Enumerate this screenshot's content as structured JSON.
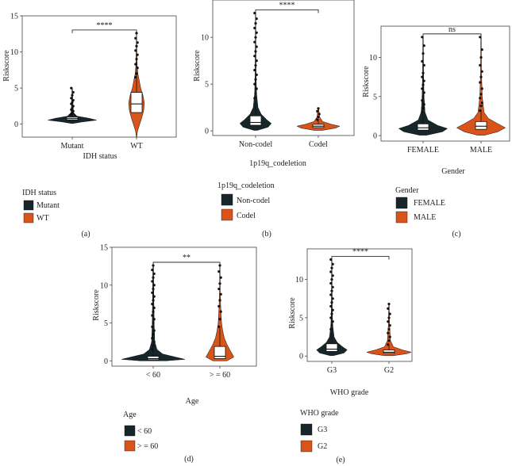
{
  "colors": {
    "dark": "#17262b",
    "orange": "#d9541a",
    "box_fill": "#ffffff",
    "frame": "#444444"
  },
  "chart_data": [
    {
      "panel": "(a)",
      "type": "violin",
      "ylabel": "Riskscore",
      "xlabel": "IDH status",
      "categories": [
        "Mutant",
        "WT"
      ],
      "ylim": [
        -1.8,
        15
      ],
      "yticks": [
        0,
        5,
        10,
        15
      ],
      "significance": "****",
      "legend": {
        "title": "IDH status",
        "entries": [
          "Mutant",
          "WT"
        ]
      },
      "series": [
        {
          "name": "Mutant",
          "color": "#17262b",
          "median": 0.8,
          "q1": 0.6,
          "q3": 1.0,
          "max": 5.0,
          "min": 0.1,
          "width": 0.85,
          "profile": [
            [
              0.1,
              0.05
            ],
            [
              0.3,
              0.4
            ],
            [
              0.55,
              1
            ],
            [
              0.8,
              0.7
            ],
            [
              1.1,
              0.2
            ],
            [
              1.6,
              0.05
            ],
            [
              2.5,
              0.03
            ],
            [
              3.5,
              0.02
            ],
            [
              5.0,
              0.01
            ]
          ],
          "outliers": [
            1.3,
            1.5,
            1.8,
            2.0,
            2.2,
            2.5,
            2.8,
            3.0,
            3.3,
            3.6,
            4.0,
            4.4,
            5.0
          ]
        },
        {
          "name": "WT",
          "color": "#d9541a",
          "median": 2.8,
          "q1": 1.6,
          "q3": 4.4,
          "max": 12.6,
          "min": -1.8,
          "width": 0.32,
          "profile": [
            [
              -1.8,
              0.02
            ],
            [
              -1,
              0.1
            ],
            [
              0,
              0.35
            ],
            [
              1,
              0.6
            ],
            [
              2,
              0.8
            ],
            [
              3,
              0.85
            ],
            [
              4,
              0.7
            ],
            [
              5,
              0.45
            ],
            [
              6,
              0.3
            ],
            [
              7,
              0.15
            ],
            [
              8,
              0.08
            ],
            [
              10,
              0.04
            ],
            [
              12.6,
              0.01
            ]
          ],
          "outliers": [
            6.5,
            7.0,
            7.8,
            8.3,
            9.0,
            9.6,
            10.2,
            10.8,
            11.3,
            11.9,
            12.6
          ]
        }
      ]
    },
    {
      "panel": "(b)",
      "type": "violin",
      "ylabel": "Riskscore",
      "xlabel": "1p19q_codeletion",
      "categories": [
        "Non-codel",
        "Codel"
      ],
      "ylim": [
        -0.5,
        14
      ],
      "yticks": [
        0,
        5,
        10
      ],
      "significance": "****",
      "legend": {
        "title": "1p19q_codeletion",
        "entries": [
          "Non-codel",
          "Codel"
        ]
      },
      "series": [
        {
          "name": "Non-codel",
          "color": "#17262b",
          "median": 0.9,
          "q1": 0.6,
          "q3": 1.6,
          "max": 12.6,
          "min": 0.05,
          "width": 0.55,
          "profile": [
            [
              0.05,
              0.1
            ],
            [
              0.4,
              0.8
            ],
            [
              0.8,
              1
            ],
            [
              1.2,
              0.7
            ],
            [
              1.8,
              0.35
            ],
            [
              2.5,
              0.15
            ],
            [
              4,
              0.06
            ],
            [
              6,
              0.03
            ],
            [
              9,
              0.02
            ],
            [
              12.6,
              0.01
            ]
          ],
          "outliers": [
            3.5,
            4.0,
            4.5,
            5.0,
            5.5,
            6.0,
            6.5,
            7.0,
            7.5,
            8.0,
            8.5,
            9.0,
            9.5,
            10.0,
            10.5,
            11.0,
            11.5,
            12.0,
            12.6
          ]
        },
        {
          "name": "Codel",
          "color": "#d9541a",
          "median": 0.5,
          "q1": 0.35,
          "q3": 0.7,
          "max": 2.4,
          "min": 0.05,
          "width": 0.75,
          "profile": [
            [
              0.05,
              0.2
            ],
            [
              0.3,
              0.8
            ],
            [
              0.5,
              1
            ],
            [
              0.7,
              0.6
            ],
            [
              1.0,
              0.2
            ],
            [
              1.5,
              0.06
            ],
            [
              2.4,
              0.02
            ]
          ],
          "outliers": [
            1.2,
            1.5,
            1.8,
            2.1,
            2.4
          ]
        }
      ]
    },
    {
      "panel": "(c)",
      "type": "violin",
      "ylabel": "Riskscore",
      "xlabel": "Gender",
      "categories": [
        "FEMALE",
        "MALE"
      ],
      "ylim": [
        -0.7,
        14
      ],
      "yticks": [
        0,
        5,
        10
      ],
      "significance": "ns",
      "legend": {
        "title": "Gender",
        "entries": [
          "FEMALE",
          "MALE"
        ]
      },
      "series": [
        {
          "name": "FEMALE",
          "color": "#17262b",
          "median": 1.0,
          "q1": 0.7,
          "q3": 1.5,
          "max": 12.6,
          "min": 0.05,
          "width": 0.85,
          "profile": [
            [
              0.05,
              0.15
            ],
            [
              0.5,
              0.8
            ],
            [
              0.9,
              1
            ],
            [
              1.3,
              0.6
            ],
            [
              2,
              0.2
            ],
            [
              3,
              0.08
            ],
            [
              5,
              0.04
            ],
            [
              8,
              0.02
            ],
            [
              12.6,
              0.01
            ]
          ],
          "outliers": [
            3,
            3.5,
            4,
            4.5,
            5,
            5.5,
            6,
            6.5,
            7,
            7.5,
            8,
            9,
            9.5,
            10.5,
            11.5,
            12.6
          ]
        },
        {
          "name": "MALE",
          "color": "#d9541a",
          "median": 1.2,
          "q1": 0.8,
          "q3": 1.8,
          "max": 12.6,
          "min": 0.05,
          "width": 0.85,
          "profile": [
            [
              0.05,
              0.15
            ],
            [
              0.5,
              0.7
            ],
            [
              1,
              1
            ],
            [
              1.5,
              0.7
            ],
            [
              2.2,
              0.3
            ],
            [
              3,
              0.12
            ],
            [
              5,
              0.05
            ],
            [
              8,
              0.02
            ],
            [
              12.6,
              0.01
            ]
          ],
          "outliers": [
            3.2,
            3.8,
            4.2,
            4.8,
            5.3,
            6,
            6.8,
            7.5,
            8.2,
            9,
            10,
            11,
            12.6
          ]
        }
      ]
    },
    {
      "panel": "(d)",
      "type": "violin",
      "ylabel": "Riskscore",
      "xlabel": "Age",
      "categories": [
        "< 60",
        ">= 60"
      ],
      "tick_labels": [
        "< 60",
        "> = 60"
      ],
      "legend_labels": [
        "< 60",
        "> = 60"
      ],
      "ylim": [
        -0.7,
        15
      ],
      "yticks": [
        0,
        5,
        10,
        15
      ],
      "significance": "**",
      "legend": {
        "title": "Age",
        "entries": [
          "< 60",
          ">= 60"
        ]
      },
      "series": [
        {
          "name": "< 60",
          "color": "#17262b",
          "median": 0.3,
          "q1": 0.15,
          "q3": 0.6,
          "max": 12.6,
          "min": 0.0,
          "width": 0.95,
          "profile": [
            [
              0,
              0.4
            ],
            [
              0.2,
              1
            ],
            [
              0.5,
              0.7
            ],
            [
              0.9,
              0.3
            ],
            [
              1.5,
              0.12
            ],
            [
              2.5,
              0.05
            ],
            [
              5,
              0.03
            ],
            [
              8,
              0.02
            ],
            [
              12.6,
              0.01
            ]
          ],
          "outliers": [
            1.5,
            2,
            2.5,
            3,
            3.5,
            4,
            4.5,
            5,
            5.5,
            6,
            6.5,
            7,
            7.5,
            8,
            8.5,
            9,
            9.5,
            10,
            10.5,
            11,
            11.5,
            12,
            12.6
          ]
        },
        {
          "name": ">= 60",
          "color": "#d9541a",
          "median": 0.6,
          "q1": 0.3,
          "q3": 1.9,
          "max": 12.6,
          "min": 0.0,
          "width": 0.42,
          "profile": [
            [
              0,
              0.5
            ],
            [
              0.5,
              1
            ],
            [
              1,
              0.85
            ],
            [
              1.5,
              0.7
            ],
            [
              2.2,
              0.5
            ],
            [
              3,
              0.32
            ],
            [
              4,
              0.2
            ],
            [
              5,
              0.12
            ],
            [
              7,
              0.06
            ],
            [
              9,
              0.03
            ],
            [
              12.6,
              0.01
            ]
          ],
          "outliers": [
            4.5,
            5.5,
            6.5,
            7.2,
            8,
            8.8,
            9.5,
            10.2,
            11,
            11.8,
            12.6
          ]
        }
      ]
    },
    {
      "panel": "(e)",
      "type": "violin",
      "ylabel": "Riskscore",
      "xlabel": "WHO grade",
      "categories": [
        "G3",
        "G2"
      ],
      "ylim": [
        -0.7,
        14
      ],
      "yticks": [
        0,
        5,
        10
      ],
      "significance": "****",
      "legend": {
        "title": "WHO grade",
        "entries": [
          "G3",
          "G2"
        ]
      },
      "series": [
        {
          "name": "G3",
          "color": "#17262b",
          "median": 0.9,
          "q1": 0.6,
          "q3": 1.6,
          "max": 12.6,
          "min": 0.05,
          "width": 0.55,
          "profile": [
            [
              0.05,
              0.1
            ],
            [
              0.4,
              0.8
            ],
            [
              0.8,
              1
            ],
            [
              1.2,
              0.7
            ],
            [
              1.8,
              0.35
            ],
            [
              2.5,
              0.15
            ],
            [
              4,
              0.06
            ],
            [
              6,
              0.03
            ],
            [
              9,
              0.02
            ],
            [
              12.6,
              0.01
            ]
          ],
          "outliers": [
            3.5,
            4,
            4.5,
            5,
            5.5,
            6,
            6.5,
            7,
            7.5,
            8,
            8.5,
            9,
            9.5,
            10,
            10.5,
            11,
            11.5,
            12,
            12.6
          ]
        },
        {
          "name": "G2",
          "color": "#d9541a",
          "median": 0.5,
          "q1": 0.35,
          "q3": 0.8,
          "max": 6.8,
          "min": 0.05,
          "width": 0.8,
          "profile": [
            [
              0.05,
              0.2
            ],
            [
              0.3,
              0.8
            ],
            [
              0.5,
              1
            ],
            [
              0.8,
              0.6
            ],
            [
              1.2,
              0.2
            ],
            [
              2,
              0.07
            ],
            [
              4,
              0.03
            ],
            [
              6.8,
              0.01
            ]
          ],
          "outliers": [
            1.5,
            2,
            2.5,
            3,
            3.5,
            4,
            4.5,
            5,
            5.5,
            6.2,
            6.8
          ]
        }
      ]
    }
  ]
}
